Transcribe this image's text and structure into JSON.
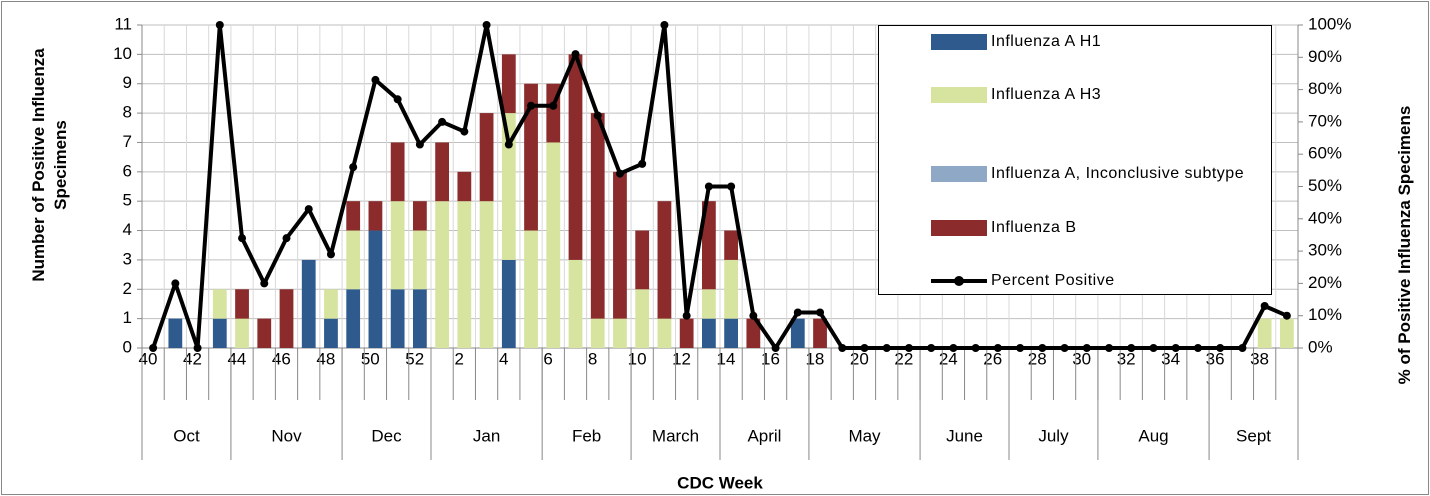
{
  "chart_data": {
    "type": "bar_line",
    "y_axis_label": "Number of Positive Influenza Specimens",
    "y2_axis_label": "% of Positive Influenza Specimens",
    "x_axis_label": "CDC Week",
    "categories": [
      "40",
      null,
      "42",
      null,
      "44",
      null,
      "46",
      null,
      "48",
      null,
      "50",
      null,
      "52",
      null,
      "2",
      null,
      "4",
      null,
      "6",
      null,
      "8",
      null,
      "10",
      null,
      "12",
      null,
      "14",
      null,
      "16",
      null,
      "18",
      null,
      "20",
      null,
      "22",
      null,
      "24",
      null,
      "26",
      null,
      "28",
      null,
      "30",
      null,
      "32",
      null,
      "34",
      null,
      "36",
      null,
      "38",
      null
    ],
    "months": [
      {
        "label": "Oct",
        "span": 4
      },
      {
        "label": "Nov",
        "span": 5
      },
      {
        "label": "Dec",
        "span": 4
      },
      {
        "label": "Jan",
        "span": 5
      },
      {
        "label": "Feb",
        "span": 4
      },
      {
        "label": "March",
        "span": 4
      },
      {
        "label": "April",
        "span": 4
      },
      {
        "label": "May",
        "span": 5
      },
      {
        "label": "June",
        "span": 4
      },
      {
        "label": "July",
        "span": 4
      },
      {
        "label": "Aug",
        "span": 5
      },
      {
        "label": "Sept",
        "span": 4
      }
    ],
    "series": [
      {
        "name": "Influenza A H1",
        "color": "#2f5a8e",
        "values": [
          0,
          1,
          0,
          1,
          0,
          0,
          0,
          3,
          1,
          2,
          4,
          2,
          2,
          0,
          0,
          0,
          3,
          0,
          0,
          0,
          0,
          0,
          0,
          0,
          0,
          1,
          1,
          0,
          0,
          1,
          0,
          0,
          0,
          0,
          0,
          0,
          0,
          0,
          0,
          0,
          0,
          0,
          0,
          0,
          0,
          0,
          0,
          0,
          0,
          0,
          0,
          0
        ]
      },
      {
        "name": "Influenza A H3",
        "color": "#d7e4a0",
        "values": [
          0,
          0,
          0,
          1,
          1,
          0,
          0,
          0,
          1,
          2,
          0,
          3,
          2,
          5,
          5,
          5,
          5,
          4,
          7,
          3,
          1,
          1,
          2,
          1,
          0,
          1,
          2,
          0,
          0,
          0,
          0,
          0,
          0,
          0,
          0,
          0,
          0,
          0,
          0,
          0,
          0,
          0,
          0,
          0,
          0,
          0,
          0,
          0,
          0,
          0,
          1,
          1
        ]
      },
      {
        "name": "Influenza A, Inconclusive subtype",
        "color": "#8ea8c6",
        "values": [
          0,
          0,
          0,
          0,
          0,
          0,
          0,
          0,
          0,
          0,
          0,
          0,
          0,
          0,
          0,
          0,
          0,
          0,
          0,
          0,
          0,
          0,
          0,
          0,
          0,
          0,
          0,
          0,
          0,
          0,
          0,
          0,
          0,
          0,
          0,
          0,
          0,
          0,
          0,
          0,
          0,
          0,
          0,
          0,
          0,
          0,
          0,
          0,
          0,
          0,
          0,
          0
        ]
      },
      {
        "name": "Influenza B",
        "color": "#8b2b2b",
        "values": [
          0,
          0,
          0,
          0,
          1,
          1,
          2,
          0,
          0,
          1,
          1,
          2,
          1,
          2,
          1,
          3,
          2,
          5,
          2,
          7,
          7,
          5,
          2,
          4,
          1,
          3,
          1,
          1,
          0,
          0,
          1,
          0,
          0,
          0,
          0,
          0,
          0,
          0,
          0,
          0,
          0,
          0,
          0,
          0,
          0,
          0,
          0,
          0,
          0,
          0,
          0,
          0
        ]
      },
      {
        "name": "Percent Positive",
        "color": "#000000",
        "axis": "y2",
        "type": "line",
        "values": [
          0,
          20,
          0,
          100,
          34,
          20,
          34,
          43,
          29,
          56,
          83,
          77,
          63,
          70,
          67,
          100,
          63,
          75,
          75,
          91,
          72,
          54,
          57,
          100,
          10,
          50,
          50,
          10,
          0,
          11,
          11,
          0,
          0,
          0,
          0,
          0,
          0,
          0,
          0,
          0,
          0,
          0,
          0,
          0,
          0,
          0,
          0,
          0,
          0,
          0,
          13,
          10
        ]
      }
    ],
    "ylim": [
      0,
      11
    ],
    "yticks": [
      0,
      1,
      2,
      3,
      4,
      5,
      6,
      7,
      8,
      9,
      10,
      11
    ],
    "y2lim": [
      0,
      100
    ],
    "y2ticks": [
      {
        "value": 0,
        "label": "0%"
      },
      {
        "value": 10,
        "label": "10%"
      },
      {
        "value": 20,
        "label": "20%"
      },
      {
        "value": 30,
        "label": "30%"
      },
      {
        "value": 40,
        "label": "40%"
      },
      {
        "value": 50,
        "label": "50%"
      },
      {
        "value": 60,
        "label": "60%"
      },
      {
        "value": 70,
        "label": "70%"
      },
      {
        "value": 80,
        "label": "80%"
      },
      {
        "value": 90,
        "label": "90%"
      },
      {
        "value": 100,
        "label": "100%"
      }
    ],
    "grid": true,
    "legend": "upper right"
  }
}
